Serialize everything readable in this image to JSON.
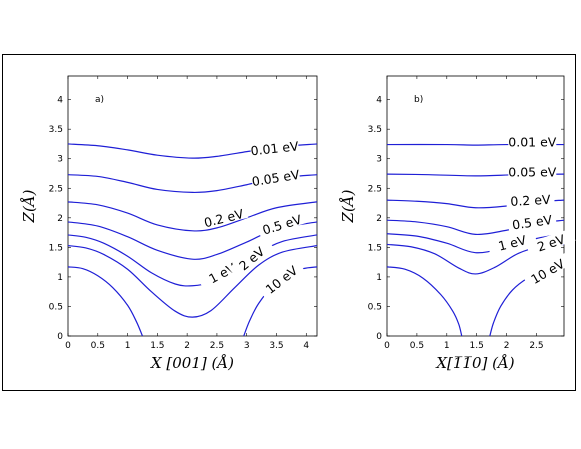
{
  "chart_data": [
    {
      "type": "line",
      "panel_label": "a)",
      "xlabel": "X [001] (Å)",
      "ylabel": "Z(Å)",
      "xlim": [
        0,
        4.18
      ],
      "ylim": [
        0,
        4.4
      ],
      "xticks": [
        "0",
        "0.5",
        "1",
        "1.5",
        "2",
        "2.5",
        "3",
        "3.5",
        "4"
      ],
      "yticks": [
        "0",
        "0.5",
        "1",
        "1.5",
        "2",
        "2.5",
        "3",
        "3.5",
        "4"
      ],
      "series": [
        {
          "name": "0.01 eV",
          "x": [
            0,
            0.5,
            1,
            1.5,
            2.09,
            2.5,
            3,
            3.5,
            4.18
          ],
          "y": [
            3.25,
            3.22,
            3.15,
            3.06,
            3.01,
            3.04,
            3.12,
            3.2,
            3.25
          ]
        },
        {
          "name": "0.05 eV",
          "x": [
            0,
            0.5,
            1,
            1.5,
            2.09,
            2.5,
            3,
            3.5,
            4.18
          ],
          "y": [
            2.73,
            2.7,
            2.6,
            2.48,
            2.43,
            2.46,
            2.56,
            2.67,
            2.73
          ]
        },
        {
          "name": "0.2 eV",
          "x": [
            0,
            0.5,
            1,
            1.5,
            2.09,
            2.5,
            3,
            3.5,
            4.18
          ],
          "y": [
            2.27,
            2.22,
            2.08,
            1.88,
            1.78,
            1.83,
            2.0,
            2.17,
            2.27
          ]
        },
        {
          "name": "0.5 eV",
          "x": [
            0,
            0.5,
            1,
            1.5,
            2.09,
            2.5,
            3,
            3.5,
            4.18
          ],
          "y": [
            1.93,
            1.86,
            1.68,
            1.45,
            1.3,
            1.38,
            1.59,
            1.81,
            1.93
          ]
        },
        {
          "name": "1 eV",
          "x": [
            0,
            0.3,
            0.6,
            1,
            1.4,
            1.8,
            2.09,
            2.4,
            2.8,
            3.2,
            3.6,
            4.18
          ],
          "y": [
            1.71,
            1.67,
            1.57,
            1.35,
            1.07,
            0.88,
            0.85,
            0.91,
            1.12,
            1.4,
            1.6,
            1.71
          ]
        },
        {
          "name": "2 eV",
          "x": [
            0,
            0.3,
            0.6,
            1,
            1.4,
            1.8,
            2.09,
            2.4,
            2.8,
            3.2,
            3.6,
            4.18
          ],
          "y": [
            1.53,
            1.49,
            1.38,
            1.13,
            0.75,
            0.42,
            0.32,
            0.43,
            0.82,
            1.2,
            1.42,
            1.53
          ]
        },
        {
          "name": "10 eV",
          "x": [
            0,
            0.25,
            0.5,
            0.75,
            1.0,
            1.15,
            1.25
          ],
          "y": [
            1.17,
            1.14,
            1.02,
            0.82,
            0.52,
            0.24,
            0.0
          ]
        },
        {
          "name": "10 eV",
          "x": [
            2.95,
            3.05,
            3.2,
            3.45,
            3.7,
            3.95,
            4.18
          ],
          "y": [
            0.0,
            0.26,
            0.55,
            0.86,
            1.04,
            1.14,
            1.17
          ]
        }
      ],
      "curve_labels": [
        {
          "text": "0.01 eV",
          "x": 3.47,
          "y": 3.15,
          "rotate": -6
        },
        {
          "text": "0.05 eV",
          "x": 3.49,
          "y": 2.65,
          "rotate": -9
        },
        {
          "text": "0.2 eV",
          "x": 2.62,
          "y": 1.97,
          "rotate": -14
        },
        {
          "text": "0.5 eV",
          "x": 3.6,
          "y": 1.86,
          "rotate": -17
        },
        {
          "text": "1 eV",
          "x": 2.6,
          "y": 1.04,
          "rotate": -28
        },
        {
          "text": "2 eV",
          "x": 3.1,
          "y": 1.29,
          "rotate": -40
        },
        {
          "text": "10 eV",
          "x": 3.6,
          "y": 0.93,
          "rotate": -38
        }
      ]
    },
    {
      "type": "line",
      "panel_label": "b)",
      "xlabel": "X[1̅1̅0] (Å)",
      "ylabel": "Z(Å)",
      "xlim": [
        0,
        2.96
      ],
      "ylim": [
        0,
        4.4
      ],
      "xticks": [
        "0",
        "0.5",
        "1",
        "1.5",
        "2",
        "2.5"
      ],
      "yticks": [
        "0",
        "0.5",
        "1",
        "1.5",
        "2",
        "2.5",
        "3",
        "3.5",
        "4"
      ],
      "series": [
        {
          "name": "0.01 eV",
          "x": [
            0,
            1,
            1.48,
            2,
            2.96
          ],
          "y": [
            3.24,
            3.24,
            3.23,
            3.24,
            3.24
          ]
        },
        {
          "name": "0.05 eV",
          "x": [
            0,
            0.7,
            1.48,
            2.2,
            2.96
          ],
          "y": [
            2.74,
            2.73,
            2.71,
            2.73,
            2.74
          ]
        },
        {
          "name": "0.2 eV",
          "x": [
            0,
            0.5,
            1,
            1.48,
            2,
            2.5,
            2.96
          ],
          "y": [
            2.3,
            2.28,
            2.24,
            2.17,
            2.2,
            2.27,
            2.3
          ]
        },
        {
          "name": "0.5 eV",
          "x": [
            0,
            0.5,
            1,
            1.48,
            2,
            2.5,
            2.96
          ],
          "y": [
            1.96,
            1.93,
            1.85,
            1.72,
            1.79,
            1.9,
            1.96
          ]
        },
        {
          "name": "1 eV",
          "x": [
            0,
            0.5,
            1,
            1.48,
            2,
            2.5,
            2.96
          ],
          "y": [
            1.73,
            1.69,
            1.57,
            1.41,
            1.5,
            1.65,
            1.73
          ]
        },
        {
          "name": "2 eV",
          "x": [
            0,
            0.4,
            0.8,
            1.2,
            1.48,
            1.8,
            2.2,
            2.6,
            2.96
          ],
          "y": [
            1.55,
            1.51,
            1.39,
            1.15,
            1.05,
            1.16,
            1.4,
            1.52,
            1.55
          ]
        },
        {
          "name": "10 eV",
          "x": [
            0,
            0.3,
            0.6,
            0.9,
            1.1,
            1.2,
            1.25
          ],
          "y": [
            1.17,
            1.13,
            0.98,
            0.7,
            0.42,
            0.2,
            0.0
          ]
        },
        {
          "name": "10 eV",
          "x": [
            1.72,
            1.78,
            1.9,
            2.1,
            2.35,
            2.6,
            2.96
          ],
          "y": [
            0.0,
            0.22,
            0.5,
            0.78,
            0.98,
            1.1,
            1.17
          ]
        }
      ],
      "curve_labels": [
        {
          "text": "0.01 eV",
          "x": 2.43,
          "y": 3.26,
          "rotate": 0
        },
        {
          "text": "0.05 eV",
          "x": 2.43,
          "y": 2.75,
          "rotate": 0
        },
        {
          "text": "0.2 eV",
          "x": 2.4,
          "y": 2.27,
          "rotate": -3
        },
        {
          "text": "0.5 eV",
          "x": 2.43,
          "y": 1.9,
          "rotate": -8
        },
        {
          "text": "1 eV",
          "x": 2.1,
          "y": 1.55,
          "rotate": -14
        },
        {
          "text": "2 eV",
          "x": 2.75,
          "y": 1.55,
          "rotate": -18
        },
        {
          "text": "10 eV",
          "x": 2.7,
          "y": 1.07,
          "rotate": -30
        }
      ]
    }
  ]
}
